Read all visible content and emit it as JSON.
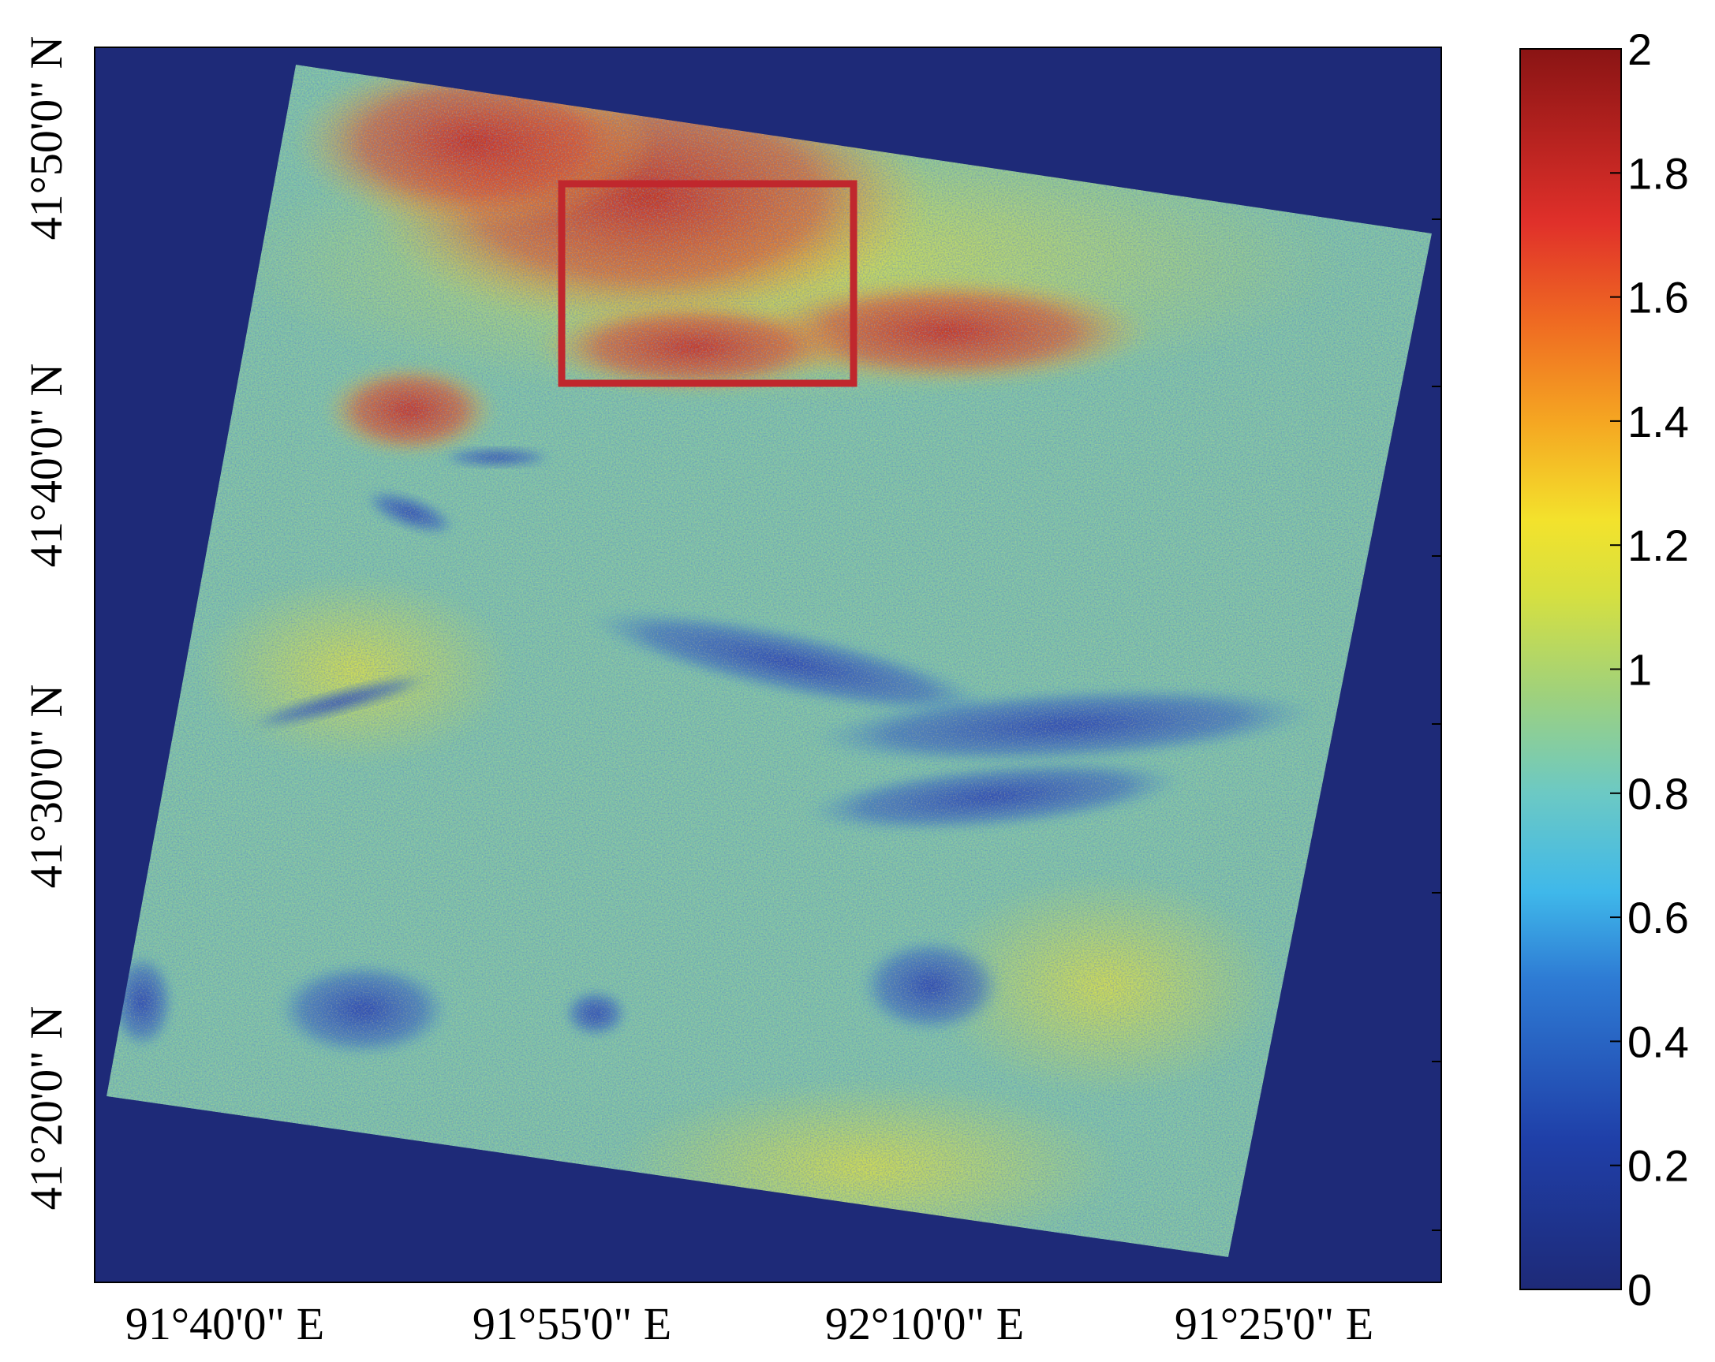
{
  "map": {
    "latitude_labels": [
      "41°50'0\" N",
      "41°40'0\" N",
      "41°30'0\" N",
      "41°20'0\" N"
    ],
    "longitude_labels": [
      "91°40'0\" E",
      "91°55'0\" E",
      "92°10'0\" E",
      "91°25'0\" E"
    ],
    "colorbar": {
      "min": 0,
      "max": 2,
      "tick_labels": [
        "2",
        "1.8",
        "1.6",
        "1.4",
        "1.2",
        "1",
        "0.8",
        "0.6",
        "0.4",
        "0.2",
        "0"
      ],
      "colormap": "jet"
    },
    "highlight_box_color": "#c0272d",
    "background_color": "#1e2a78"
  }
}
